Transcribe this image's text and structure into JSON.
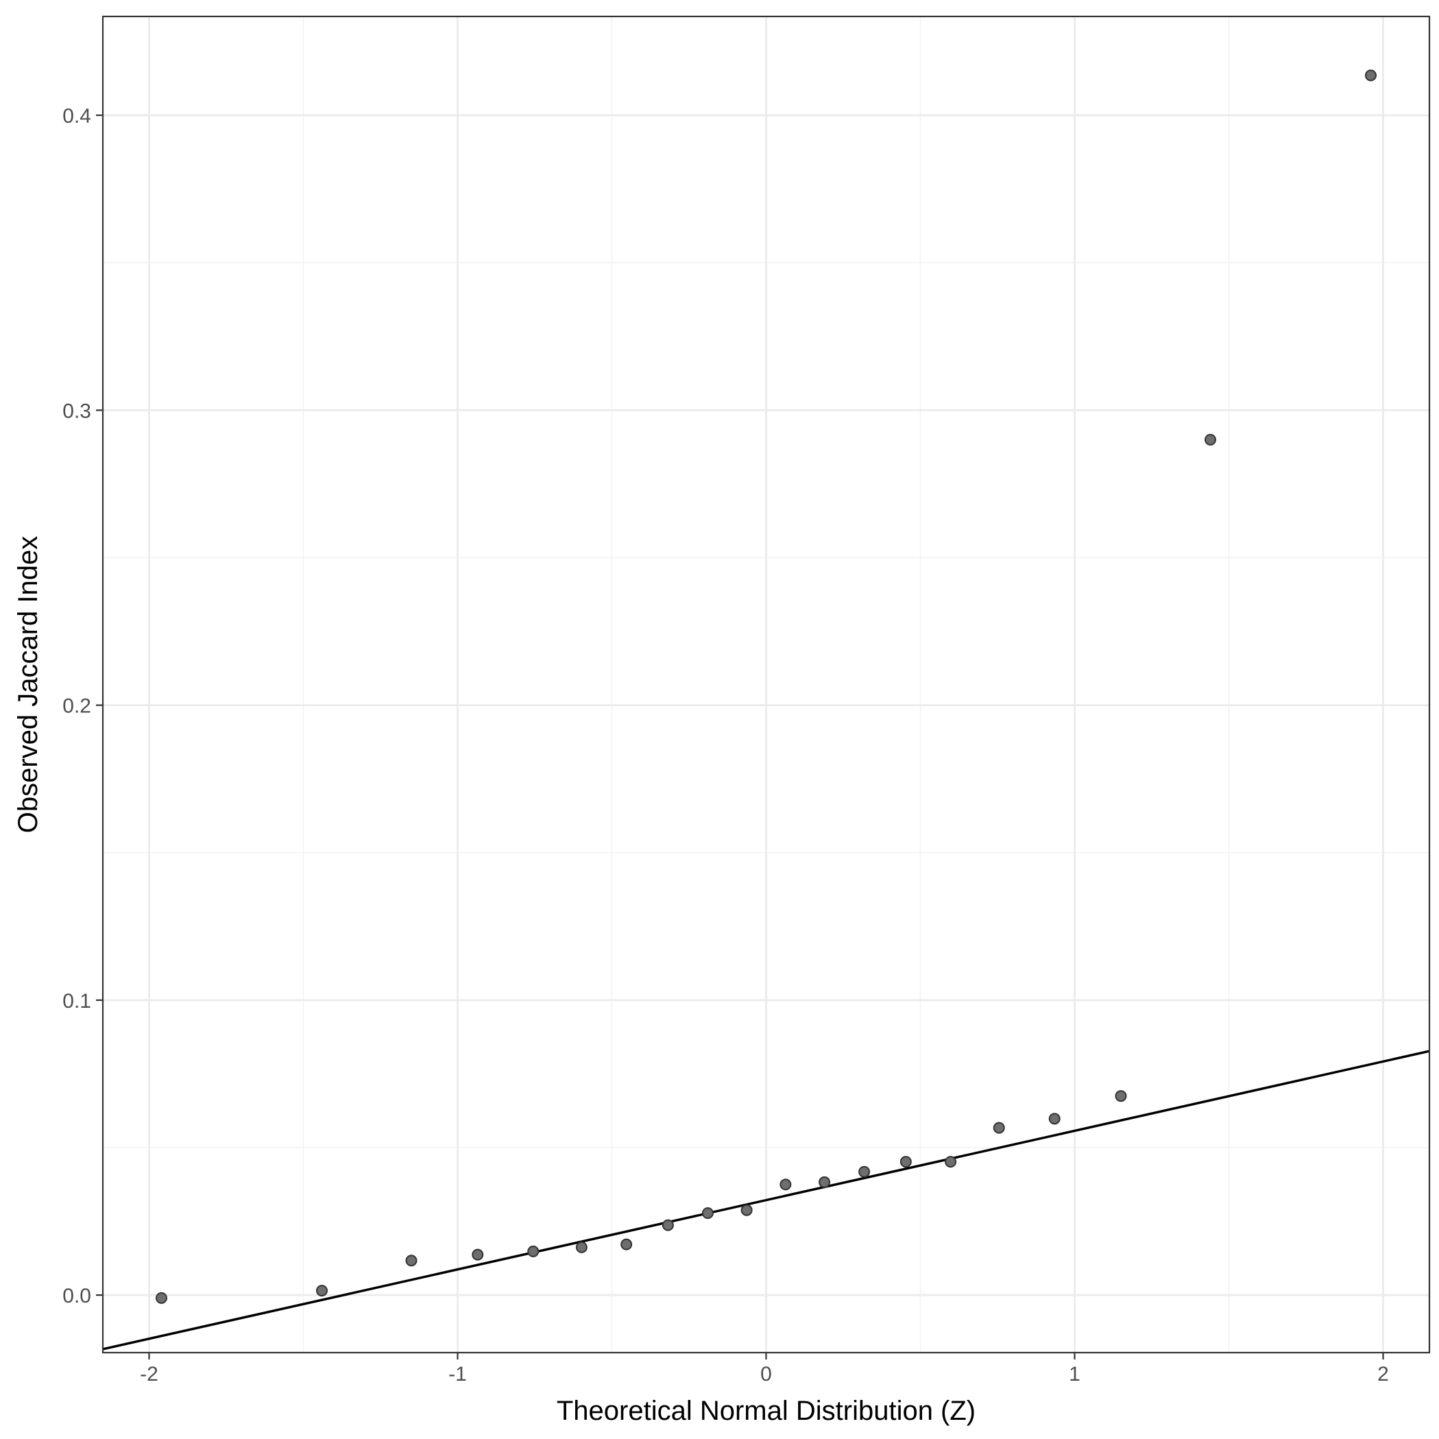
{
  "chart_data": {
    "type": "scatter",
    "title": "",
    "xlabel": "Theoretical Normal Distribution (Z)",
    "ylabel": "Observed Jaccard Index",
    "xlim": [
      -2.15,
      2.15
    ],
    "ylim": [
      -0.0195,
      0.4335
    ],
    "x_ticks": [
      -2,
      -1,
      0,
      1,
      2
    ],
    "x_tick_labels": [
      "-2",
      "-1",
      "0",
      "1",
      "2"
    ],
    "y_ticks": [
      0.0,
      0.1,
      0.2,
      0.3,
      0.4
    ],
    "y_tick_labels": [
      "0.0",
      "0.1",
      "0.2",
      "0.3",
      "0.4"
    ],
    "grid": true,
    "points": [
      {
        "x": -1.96,
        "y": -0.001
      },
      {
        "x": -1.44,
        "y": 0.0015
      },
      {
        "x": -1.15,
        "y": 0.0117
      },
      {
        "x": -0.935,
        "y": 0.0137
      },
      {
        "x": -0.755,
        "y": 0.0148
      },
      {
        "x": -0.598,
        "y": 0.0162
      },
      {
        "x": -0.453,
        "y": 0.0172
      },
      {
        "x": -0.318,
        "y": 0.0237
      },
      {
        "x": -0.189,
        "y": 0.0278
      },
      {
        "x": -0.063,
        "y": 0.0288
      },
      {
        "x": 0.063,
        "y": 0.0375
      },
      {
        "x": 0.189,
        "y": 0.0383
      },
      {
        "x": 0.318,
        "y": 0.0418
      },
      {
        "x": 0.453,
        "y": 0.0452
      },
      {
        "x": 0.598,
        "y": 0.0452
      },
      {
        "x": 0.755,
        "y": 0.0567
      },
      {
        "x": 0.935,
        "y": 0.0598
      },
      {
        "x": 1.15,
        "y": 0.0675
      },
      {
        "x": 1.44,
        "y": 0.29
      },
      {
        "x": 1.96,
        "y": 0.4135
      }
    ],
    "reference_line": {
      "intercept": 0.0322,
      "slope": 0.0235
    }
  }
}
